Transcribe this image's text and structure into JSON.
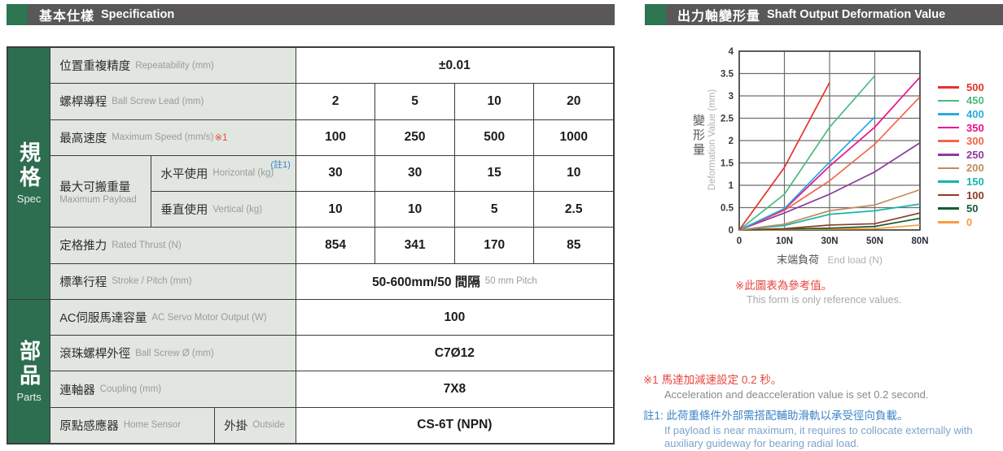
{
  "headers": {
    "left_zh": "基本仕樣",
    "left_en": "Specification",
    "right_zh": "出力軸變形量",
    "right_en": "Shaft Output Deformation Value"
  },
  "spec_table": {
    "section_spec": {
      "zh": "規格",
      "en": "Spec"
    },
    "section_parts": {
      "zh": "部品",
      "en": "Parts"
    },
    "rows": {
      "repeatability": {
        "zh": "位置重複精度",
        "en": "Repeatability (mm)",
        "value": "±0.01"
      },
      "lead": {
        "zh": "螺桿導程",
        "en": "Ball Screw Lead (mm)",
        "values": [
          "2",
          "5",
          "10",
          "20"
        ]
      },
      "speed": {
        "zh": "最高速度",
        "en": "Maximum Speed (mm/s)",
        "note": "※1",
        "values": [
          "100",
          "250",
          "500",
          "1000"
        ]
      },
      "payload": {
        "zh": "最大可搬重量",
        "en": "Maximum Payload",
        "horizontal": {
          "zh": "水平使用",
          "en": "Horizontal (kg)",
          "note": "(註1)",
          "values": [
            "30",
            "30",
            "15",
            "10"
          ]
        },
        "vertical": {
          "zh": "垂直使用",
          "en": "Vertical (kg)",
          "values": [
            "10",
            "10",
            "5",
            "2.5"
          ]
        }
      },
      "thrust": {
        "zh": "定格推力",
        "en": "Rated Thrust (N)",
        "values": [
          "854",
          "341",
          "170",
          "85"
        ]
      },
      "stroke": {
        "zh": "標準行程",
        "en": "Stroke / Pitch (mm)",
        "value_main": "50-600mm/50 間隔",
        "value_sub": "50 mm Pitch"
      },
      "motor": {
        "zh": "AC伺服馬達容量",
        "en": "AC Servo Motor Output (W)",
        "value": "100"
      },
      "screw_od": {
        "zh": "滾珠螺桿外徑",
        "en": "Ball Screw Ø (mm)",
        "value": "C7Ø12"
      },
      "coupling": {
        "zh": "連軸器",
        "en": "Coupling (mm)",
        "value": "7X8"
      },
      "home_sensor": {
        "zh": "原點感應器",
        "en": "Home Sensor",
        "sub_zh": "外掛",
        "sub_en": "Outside",
        "value": "CS-6T (NPN)"
      }
    }
  },
  "chart_data": {
    "type": "line",
    "title": "出力軸變形量 Shaft Output Deformation Value",
    "ylabel_zh": "變形量",
    "ylabel_en": "Deformation Value (mm)",
    "xlabel_zh": "末端負荷",
    "xlabel_en": "End load (N)",
    "ylim": [
      0,
      4
    ],
    "y_ticks": [
      "0",
      "0.5",
      "1",
      "1.5",
      "2",
      "2.5",
      "3",
      "3.5",
      "4"
    ],
    "x_ticks": [
      "0",
      "10N",
      "30N",
      "50N",
      "80N"
    ],
    "grid": true,
    "legend_position": "right",
    "series": [
      {
        "name": "500",
        "color": "#e63329",
        "values": [
          0,
          1.4,
          3.3,
          null,
          null
        ]
      },
      {
        "name": "450",
        "color": "#4cba7e",
        "values": [
          0,
          0.8,
          2.3,
          3.45,
          null
        ]
      },
      {
        "name": "400",
        "color": "#2aabe2",
        "values": [
          0,
          0.48,
          1.52,
          2.53,
          null
        ]
      },
      {
        "name": "350",
        "color": "#ec0f8c",
        "values": [
          0,
          0.46,
          1.43,
          2.3,
          3.42
        ]
      },
      {
        "name": "300",
        "color": "#f26649",
        "values": [
          0,
          0.44,
          1.1,
          1.92,
          2.98
        ]
      },
      {
        "name": "250",
        "color": "#8e3a9e",
        "values": [
          0,
          0.38,
          0.8,
          1.3,
          1.95
        ]
      },
      {
        "name": "200",
        "color": "#c08d5e",
        "values": [
          0,
          0.13,
          0.43,
          0.56,
          0.9
        ]
      },
      {
        "name": "150",
        "color": "#16b5ac",
        "values": [
          0,
          0.1,
          0.35,
          0.43,
          0.58
        ]
      },
      {
        "name": "100",
        "color": "#8c3d26",
        "values": [
          0,
          0.03,
          0.11,
          0.14,
          0.38
        ]
      },
      {
        "name": "50",
        "color": "#165c33",
        "values": [
          0,
          0.02,
          0.04,
          0.08,
          0.26
        ]
      },
      {
        "name": "0",
        "color": "#f79f3d",
        "values": [
          0,
          0.01,
          0.02,
          0.03,
          0.11
        ]
      }
    ],
    "note_zh": "※此圖表為參考值。",
    "note_en": "This form is only reference values."
  },
  "footnotes": {
    "note1_zh": "※1 馬達加減速設定 0.2 秒。",
    "note1_en": "Acceleration and deacceleration value is set 0.2 second.",
    "note2_zh": "註1: 此荷重條件外部需搭配輔助滑軌以承受徑向負載。",
    "note2_en1": "If payload is near maximum, it requires to collocate externally with",
    "note2_en2": "auxiliary guideway for bearing radial load."
  }
}
